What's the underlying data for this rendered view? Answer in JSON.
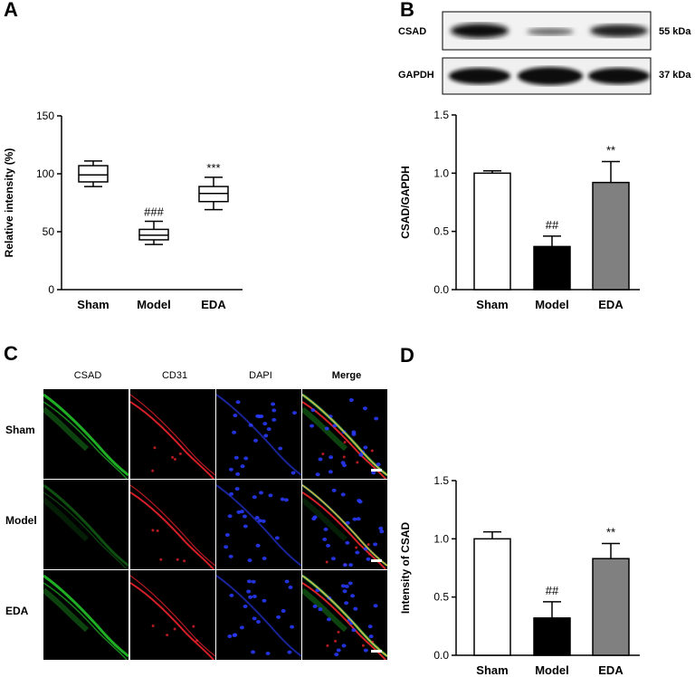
{
  "panels": {
    "a": {
      "letter": "A"
    },
    "b": {
      "letter": "B"
    },
    "c": {
      "letter": "C"
    },
    "d": {
      "letter": "D"
    }
  },
  "blot": {
    "rows": [
      {
        "protein": "CSAD",
        "size": "55 kDa"
      },
      {
        "protein": "GAPDH",
        "size": "37 kDa"
      }
    ]
  },
  "micrographs": {
    "columns": [
      "CSAD",
      "CD31",
      "DAPI",
      "Merge"
    ],
    "rows": [
      "Sham",
      "Model",
      "EDA"
    ],
    "colors": {
      "csad": "#22c028",
      "cd31": "#e0202a",
      "dapi": "#2a3cff"
    }
  },
  "chart_data": [
    {
      "id": "A",
      "type": "box",
      "categories": [
        "Sham",
        "Model",
        "EDA"
      ],
      "boxes": [
        {
          "min": 89,
          "q1": 93,
          "median": 99,
          "q3": 107,
          "max": 111,
          "annotation": ""
        },
        {
          "min": 39,
          "q1": 43,
          "median": 47,
          "q3": 52,
          "max": 59,
          "annotation": "###"
        },
        {
          "min": 69,
          "q1": 76,
          "median": 83,
          "q3": 89,
          "max": 97,
          "annotation": "***"
        }
      ],
      "ylabel": "Relative intensity (%)",
      "xlabel": "",
      "ylim": [
        0,
        150
      ],
      "yticks": [
        0,
        50,
        100,
        150
      ]
    },
    {
      "id": "B",
      "type": "bar",
      "categories": [
        "Sham",
        "Model",
        "EDA"
      ],
      "values": [
        1.0,
        0.37,
        0.92
      ],
      "errors": [
        0.02,
        0.09,
        0.18
      ],
      "annotations": [
        "",
        "##",
        "**"
      ],
      "bar_colors": [
        "#ffffff",
        "#000000",
        "#808080"
      ],
      "ylabel": "CSAD/GAPDH",
      "xlabel": "",
      "ylim": [
        0,
        1.5
      ],
      "yticks": [
        "0.0",
        "0.5",
        "1.0",
        "1.5"
      ]
    },
    {
      "id": "D",
      "type": "bar",
      "categories": [
        "Sham",
        "Model",
        "EDA"
      ],
      "values": [
        1.0,
        0.32,
        0.83
      ],
      "errors": [
        0.06,
        0.14,
        0.13
      ],
      "annotations": [
        "",
        "##",
        "**"
      ],
      "bar_colors": [
        "#ffffff",
        "#000000",
        "#808080"
      ],
      "ylabel": "Intensity of CSAD",
      "xlabel": "",
      "ylim": [
        0,
        1.5
      ],
      "yticks": [
        "0.0",
        "0.5",
        "1.0",
        "1.5"
      ]
    }
  ]
}
